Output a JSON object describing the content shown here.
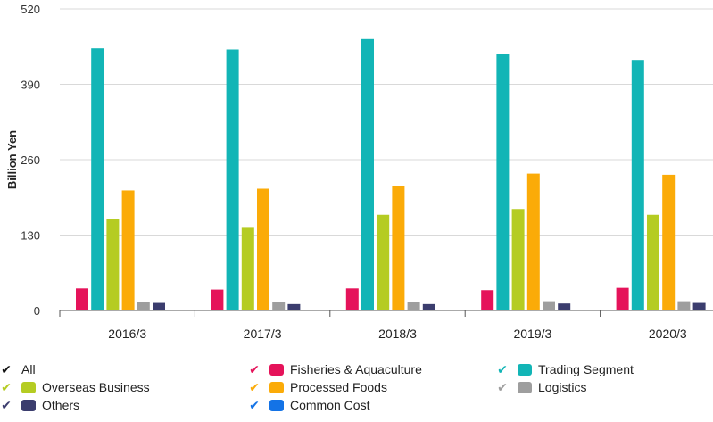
{
  "chart_data": {
    "type": "bar",
    "categories": [
      "2016/3",
      "2017/3",
      "2018/3",
      "2019/3",
      "2020/3"
    ],
    "ylabel": "Billion Yen",
    "ylim": [
      0,
      520
    ],
    "yticks": [
      0,
      130,
      260,
      390,
      520
    ],
    "grid": true,
    "legend_position": "bottom",
    "series": [
      {
        "name": "Fisheries & Aquaculture",
        "color": "#e5135a",
        "values": [
          38,
          36,
          38,
          35,
          39
        ]
      },
      {
        "name": "Trading Segment",
        "color": "#12b5b6",
        "values": [
          452,
          450,
          468,
          443,
          432
        ]
      },
      {
        "name": "Overseas Business",
        "color": "#b5cc22",
        "values": [
          158,
          144,
          165,
          175,
          165
        ]
      },
      {
        "name": "Processed Foods",
        "color": "#fbab08",
        "values": [
          207,
          210,
          214,
          236,
          234
        ]
      },
      {
        "name": "Logistics",
        "color": "#9e9e9e",
        "values": [
          14,
          14,
          14,
          16,
          16
        ]
      },
      {
        "name": "Others",
        "color": "#3b3d6e",
        "values": [
          13,
          11,
          11,
          12,
          13
        ]
      },
      {
        "name": "Common Cost",
        "color": "#1473e6",
        "values": [
          0,
          0,
          0,
          0,
          0
        ]
      }
    ]
  },
  "legend": {
    "items": [
      {
        "label": "All",
        "check_color": "#111111",
        "swatch": ""
      },
      {
        "label": "Fisheries & Aquaculture",
        "check_color": "#e5135a",
        "swatch": "#e5135a"
      },
      {
        "label": "Trading Segment",
        "check_color": "#12b5b6",
        "swatch": "#12b5b6"
      },
      {
        "label": "Overseas Business",
        "check_color": "#b5cc22",
        "swatch": "#b5cc22"
      },
      {
        "label": "Processed Foods",
        "check_color": "#fbab08",
        "swatch": "#fbab08"
      },
      {
        "label": "Logistics",
        "check_color": "#9e9e9e",
        "swatch": "#9e9e9e"
      },
      {
        "label": "Others",
        "check_color": "#3b3d6e",
        "swatch": "#3b3d6e"
      },
      {
        "label": "Common Cost",
        "check_color": "#1473e6",
        "swatch": "#1473e6"
      }
    ]
  }
}
